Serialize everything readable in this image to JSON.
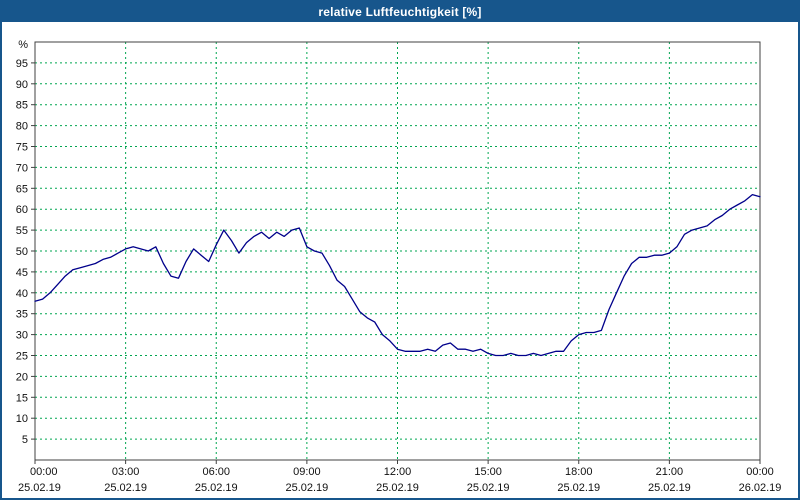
{
  "title_bar": {
    "title": "relative Luftfeuchtigkeit [%]"
  },
  "colors": {
    "title_bg": "#17568C",
    "window_border": "#17568C",
    "grid": "#00A651",
    "axis": "#404040",
    "line": "#00008B",
    "plot_bg": "#FFFFFF",
    "label_text": "#111111"
  },
  "chart_data": {
    "type": "line",
    "title": "relative Luftfeuchtigkeit [%]",
    "xlabel": "",
    "ylabel": "%",
    "ylim": [
      0,
      100
    ],
    "ytick_step": 5,
    "yticks": [
      5,
      10,
      15,
      20,
      25,
      30,
      35,
      40,
      45,
      50,
      55,
      60,
      65,
      70,
      75,
      80,
      85,
      90,
      95
    ],
    "grid": true,
    "legend_position": "none",
    "x_hours_range": [
      0,
      24
    ],
    "xticks": [
      {
        "hour": 0,
        "time": "00:00",
        "date": "25.02.19"
      },
      {
        "hour": 3,
        "time": "03:00",
        "date": "25.02.19"
      },
      {
        "hour": 6,
        "time": "06:00",
        "date": "25.02.19"
      },
      {
        "hour": 9,
        "time": "09:00",
        "date": "25.02.19"
      },
      {
        "hour": 12,
        "time": "12:00",
        "date": "25.02.19"
      },
      {
        "hour": 15,
        "time": "15:00",
        "date": "25.02.19"
      },
      {
        "hour": 18,
        "time": "18:00",
        "date": "25.02.19"
      },
      {
        "hour": 21,
        "time": "21:00",
        "date": "25.02.19"
      },
      {
        "hour": 24,
        "time": "00:00",
        "date": "26.02.19"
      }
    ],
    "series": [
      {
        "name": "relative Luftfeuchtigkeit",
        "unit": "%",
        "color": "#00008B",
        "points": [
          [
            0.0,
            38
          ],
          [
            0.25,
            38.5
          ],
          [
            0.5,
            40
          ],
          [
            0.75,
            42
          ],
          [
            1.0,
            44
          ],
          [
            1.25,
            45.5
          ],
          [
            1.5,
            46
          ],
          [
            1.75,
            46.5
          ],
          [
            2.0,
            47
          ],
          [
            2.25,
            48
          ],
          [
            2.5,
            48.5
          ],
          [
            2.75,
            49.5
          ],
          [
            3.0,
            50.5
          ],
          [
            3.25,
            51
          ],
          [
            3.5,
            50.5
          ],
          [
            3.75,
            50
          ],
          [
            4.0,
            51
          ],
          [
            4.25,
            47
          ],
          [
            4.5,
            44
          ],
          [
            4.75,
            43.5
          ],
          [
            5.0,
            47.5
          ],
          [
            5.25,
            50.5
          ],
          [
            5.5,
            49
          ],
          [
            5.75,
            47.5
          ],
          [
            6.0,
            51.5
          ],
          [
            6.25,
            55
          ],
          [
            6.5,
            52.5
          ],
          [
            6.75,
            49.5
          ],
          [
            7.0,
            52
          ],
          [
            7.25,
            53.5
          ],
          [
            7.5,
            54.5
          ],
          [
            7.75,
            53
          ],
          [
            8.0,
            54.5
          ],
          [
            8.25,
            53.5
          ],
          [
            8.5,
            55
          ],
          [
            8.75,
            55.5
          ],
          [
            9.0,
            51
          ],
          [
            9.25,
            50
          ],
          [
            9.5,
            49.5
          ],
          [
            9.75,
            46.5
          ],
          [
            10.0,
            43
          ],
          [
            10.25,
            41.5
          ],
          [
            10.5,
            38.5
          ],
          [
            10.75,
            35.5
          ],
          [
            11.0,
            34
          ],
          [
            11.25,
            33
          ],
          [
            11.5,
            30
          ],
          [
            11.75,
            28.5
          ],
          [
            12.0,
            26.5
          ],
          [
            12.25,
            26
          ],
          [
            12.5,
            26
          ],
          [
            12.75,
            26
          ],
          [
            13.0,
            26.5
          ],
          [
            13.25,
            26
          ],
          [
            13.5,
            27.5
          ],
          [
            13.75,
            28
          ],
          [
            14.0,
            26.5
          ],
          [
            14.25,
            26.5
          ],
          [
            14.5,
            26
          ],
          [
            14.75,
            26.5
          ],
          [
            15.0,
            25.5
          ],
          [
            15.25,
            25
          ],
          [
            15.5,
            25
          ],
          [
            15.75,
            25.5
          ],
          [
            16.0,
            25
          ],
          [
            16.25,
            25
          ],
          [
            16.5,
            25.5
          ],
          [
            16.75,
            25
          ],
          [
            17.0,
            25.5
          ],
          [
            17.25,
            26
          ],
          [
            17.5,
            26
          ],
          [
            17.75,
            28.5
          ],
          [
            18.0,
            30
          ],
          [
            18.25,
            30.5
          ],
          [
            18.5,
            30.5
          ],
          [
            18.75,
            31
          ],
          [
            19.0,
            36
          ],
          [
            19.25,
            40
          ],
          [
            19.5,
            44
          ],
          [
            19.75,
            47
          ],
          [
            20.0,
            48.5
          ],
          [
            20.25,
            48.5
          ],
          [
            20.5,
            49
          ],
          [
            20.75,
            49
          ],
          [
            21.0,
            49.5
          ],
          [
            21.25,
            51
          ],
          [
            21.5,
            54
          ],
          [
            21.75,
            55
          ],
          [
            22.0,
            55.5
          ],
          [
            22.25,
            56
          ],
          [
            22.5,
            57.5
          ],
          [
            22.75,
            58.5
          ],
          [
            23.0,
            60
          ],
          [
            23.25,
            61
          ],
          [
            23.5,
            62
          ],
          [
            23.75,
            63.5
          ],
          [
            24.0,
            63
          ]
        ]
      }
    ]
  }
}
